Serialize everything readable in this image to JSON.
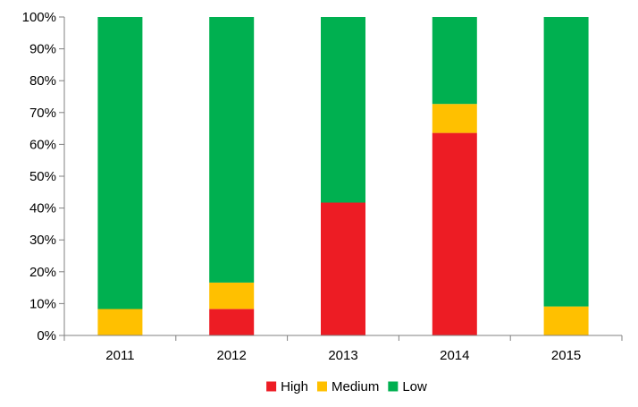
{
  "chart_data": {
    "type": "bar",
    "stacked": true,
    "normalized_percent": true,
    "categories": [
      "2011",
      "2012",
      "2013",
      "2014",
      "2015"
    ],
    "series": [
      {
        "name": "High",
        "color": "#ed1c24",
        "values": [
          0,
          8.3,
          41.7,
          63.6,
          0
        ]
      },
      {
        "name": "Medium",
        "color": "#ffc000",
        "values": [
          8.3,
          8.3,
          0,
          9.1,
          9.1
        ]
      },
      {
        "name": "Low",
        "color": "#00b050",
        "values": [
          91.7,
          83.4,
          58.3,
          27.3,
          90.9
        ]
      }
    ],
    "ylim": [
      0,
      100
    ],
    "yticks": [
      "0%",
      "10%",
      "20%",
      "30%",
      "40%",
      "50%",
      "60%",
      "70%",
      "80%",
      "90%",
      "100%"
    ],
    "grid": false,
    "legend": "bottom",
    "title": "",
    "xlabel": "",
    "ylabel": ""
  }
}
